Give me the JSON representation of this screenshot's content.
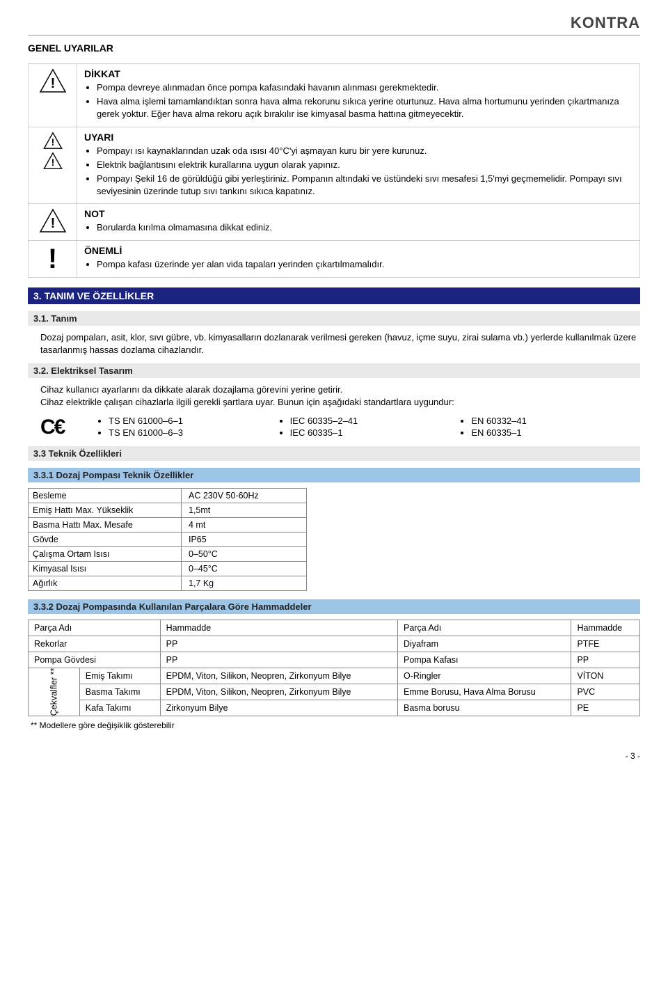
{
  "brand": "KONTRA",
  "h1": "GENEL UYARILAR",
  "warnings": {
    "dikkat": {
      "title": "DİKKAT",
      "items": [
        "Pompa devreye alınmadan önce pompa kafasındaki havanın alınması gerekmektedir.",
        "Hava alma işlemi tamamlandıktan sonra hava alma rekorunu sıkıca yerine oturtunuz. Hava alma hortumunu yerinden çıkartmanıza gerek yoktur. Eğer hava alma rekoru açık bırakılır ise kimyasal basma hattına gitmeyecektir."
      ]
    },
    "uyari": {
      "title": "UYARI",
      "items": [
        "Pompayı ısı kaynaklarından uzak oda ısısı 40°C'yi aşmayan kuru bir yere kurunuz.",
        "Elektrik bağlantısını elektrik kurallarına uygun olarak yapınız.",
        "Pompayı Şekil 16 de görüldüğü gibi yerleştiriniz. Pompanın altındaki ve üstündeki sıvı mesafesi 1,5'myi geçmemelidir. Pompayı sıvı seviyesinin üzerinde tutup sıvı tankını sıkıca kapatınız."
      ]
    },
    "not": {
      "title": "NOT",
      "items": [
        "Borularda kırılma olmamasına dikkat ediniz."
      ]
    },
    "onemli": {
      "title": "ÖNEMLİ",
      "items": [
        "Pompa kafası üzerinde yer alan vida tapaları yerinden çıkartılmamalıdır."
      ]
    }
  },
  "sec3": {
    "title": "3. TANIM VE ÖZELLİKLER",
    "s31": {
      "title": "3.1. Tanım",
      "text": "Dozaj pompaları, asit, klor, sıvı gübre, vb. kimyasalların dozlanarak verilmesi gereken (havuz, içme suyu, zirai sulama vb.) yerlerde kullanılmak üzere tasarlanmış hassas dozlama cihazlarıdır."
    },
    "s32": {
      "title": "3.2. Elektriksel Tasarım",
      "p1": "Cihaz kullanıcı ayarlarını da dikkate alarak dozajlama görevini yerine getirir.",
      "p2": "Cihaz elektrikle çalışan cihazlarla ilgili gerekli şartlara uyar. Bunun için aşağıdaki standartlara uygundur:",
      "stds": {
        "col1": [
          "TS EN 61000–6–1",
          "TS EN 61000–6–3"
        ],
        "col2": [
          "IEC 60335–2–41",
          "IEC 60335–1"
        ],
        "col3": [
          "EN 60332–41",
          "EN 60335–1"
        ]
      }
    },
    "s33": {
      "title": "3.3 Teknik Özellikleri",
      "s331_title": "3.3.1 Dozaj Pompası Teknik Özellikler",
      "specs": [
        [
          "Besleme",
          "AC 230V 50-60Hz"
        ],
        [
          "Emiş Hattı Max. Yükseklik",
          "1,5mt"
        ],
        [
          "Basma Hattı Max. Mesafe",
          "4 mt"
        ],
        [
          "Gövde",
          "IP65"
        ],
        [
          "Çalışma Ortam Isısı",
          "0–50°C"
        ],
        [
          "Kimyasal Isısı",
          "0–45°C"
        ],
        [
          "Ağırlık",
          "1,7 Kg"
        ]
      ],
      "s332_title": "3.3.2 Dozaj Pompasında Kullanılan Parçalara Göre Hammaddeler",
      "mat_headers": [
        "Parça Adı",
        "Hammadde",
        "Parça Adı",
        "Hammadde"
      ],
      "mat_rows_top": [
        [
          "Rekorlar",
          "PP",
          "Diyafram",
          "PTFE"
        ],
        [
          "Pompa Gövdesi",
          "PP",
          "Pompa Kafası",
          "PP"
        ]
      ],
      "valve_label": "Çekvalfler **",
      "mat_rows_valve": [
        [
          "Emiş Takımı",
          "EPDM, Viton, Silikon, Neopren, Zirkonyum Bilye",
          "O-Ringler",
          "VİTON"
        ],
        [
          "Basma Takımı",
          "EPDM, Viton, Silikon, Neopren, Zirkonyum Bilye",
          "Emme Borusu, Hava Alma Borusu",
          "PVC"
        ],
        [
          "Kafa Takımı",
          "Zirkonyum Bilye",
          "Basma borusu",
          "PE"
        ]
      ],
      "footnote": "** Modellere göre değişiklik gösterebilir"
    }
  },
  "page_num": "- 3 -"
}
